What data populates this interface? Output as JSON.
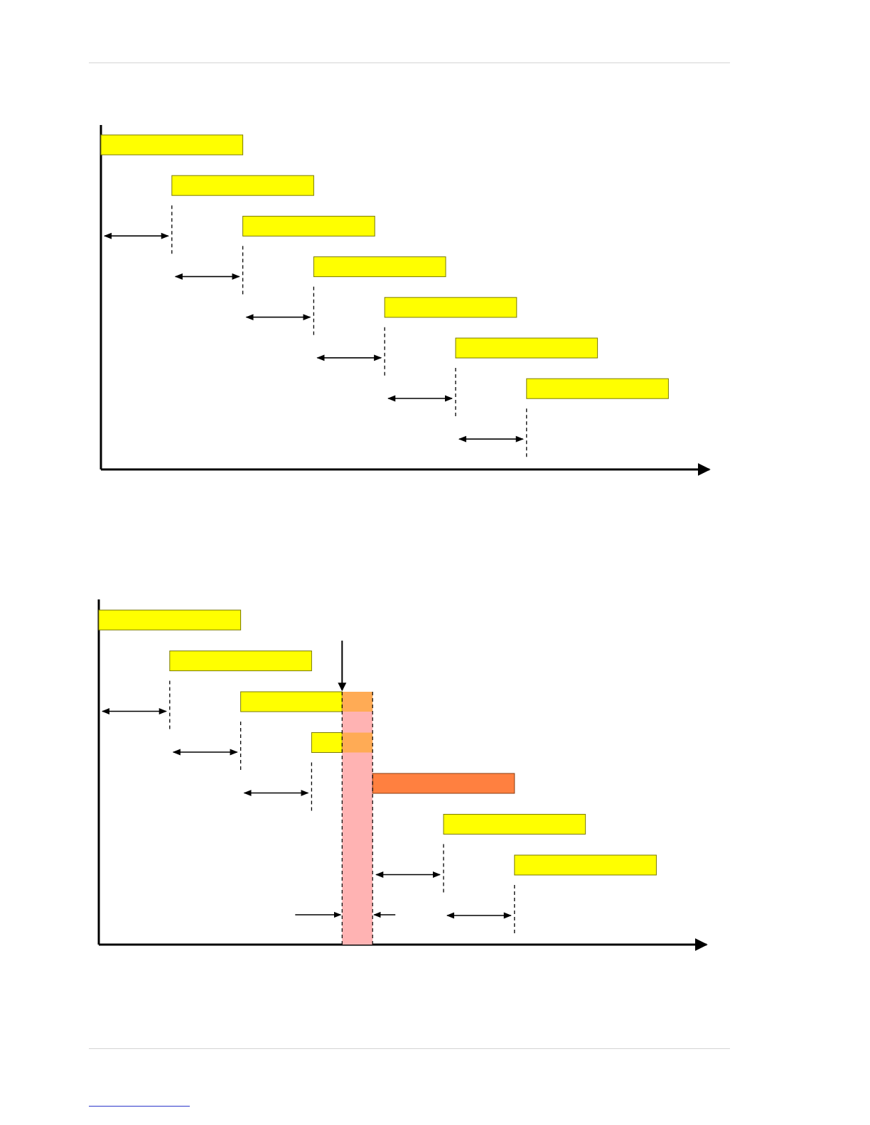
{
  "colors": {
    "bar": "#ffff00",
    "bar_border": "#7a7a00",
    "stall_bar": "#ff8040",
    "overlap": "#ffab55",
    "stall_band": "#ffb3b3",
    "axis": "#000000",
    "rule": "#d4d4d4",
    "footer_link": "#2a35c9"
  },
  "diagrams": [
    {
      "id": "pipeline-normal",
      "description_none": "",
      "bars": [
        {
          "start": 0,
          "end": 2,
          "kind": "normal"
        },
        {
          "start": 1,
          "end": 3,
          "kind": "normal"
        },
        {
          "start": 2,
          "end": 3.86,
          "kind": "normal"
        },
        {
          "start": 3,
          "end": 4.86,
          "kind": "normal"
        },
        {
          "start": 4,
          "end": 5.86,
          "kind": "normal"
        },
        {
          "start": 5,
          "end": 7,
          "kind": "normal"
        },
        {
          "start": 6,
          "end": 8,
          "kind": "normal"
        }
      ],
      "intervals": [
        {
          "from": 0,
          "to": 1
        },
        {
          "from": 1,
          "to": 2
        },
        {
          "from": 2,
          "to": 3
        },
        {
          "from": 3,
          "to": 4
        },
        {
          "from": 4,
          "to": 5
        },
        {
          "from": 5,
          "to": 6
        }
      ]
    },
    {
      "id": "pipeline-stall",
      "bars": [
        {
          "start": 0,
          "end": 2,
          "kind": "normal"
        },
        {
          "start": 1,
          "end": 3,
          "kind": "normal"
        },
        {
          "start": 2,
          "end": 3.43,
          "kind": "normal"
        },
        {
          "start": 3,
          "end": 3.43,
          "kind": "normal"
        },
        {
          "start": 3.86,
          "end": 5.86,
          "kind": "stall"
        },
        {
          "start": 4.86,
          "end": 6.86,
          "kind": "normal"
        },
        {
          "start": 5.86,
          "end": 7.86,
          "kind": "normal"
        }
      ],
      "overlaps": [
        {
          "bar": 2,
          "start": 3.43,
          "end": 3.86
        },
        {
          "bar": 3,
          "start": 3.43,
          "end": 3.86
        }
      ],
      "stall_band": {
        "start": 3.43,
        "end": 3.86
      },
      "intervals": [
        {
          "from": 0,
          "to": 1
        },
        {
          "from": 1,
          "to": 2
        },
        {
          "from": 2,
          "to": 3
        },
        {
          "from": 3.86,
          "to": 4.86
        },
        {
          "from": 4.86,
          "to": 5.86
        }
      ]
    }
  ]
}
